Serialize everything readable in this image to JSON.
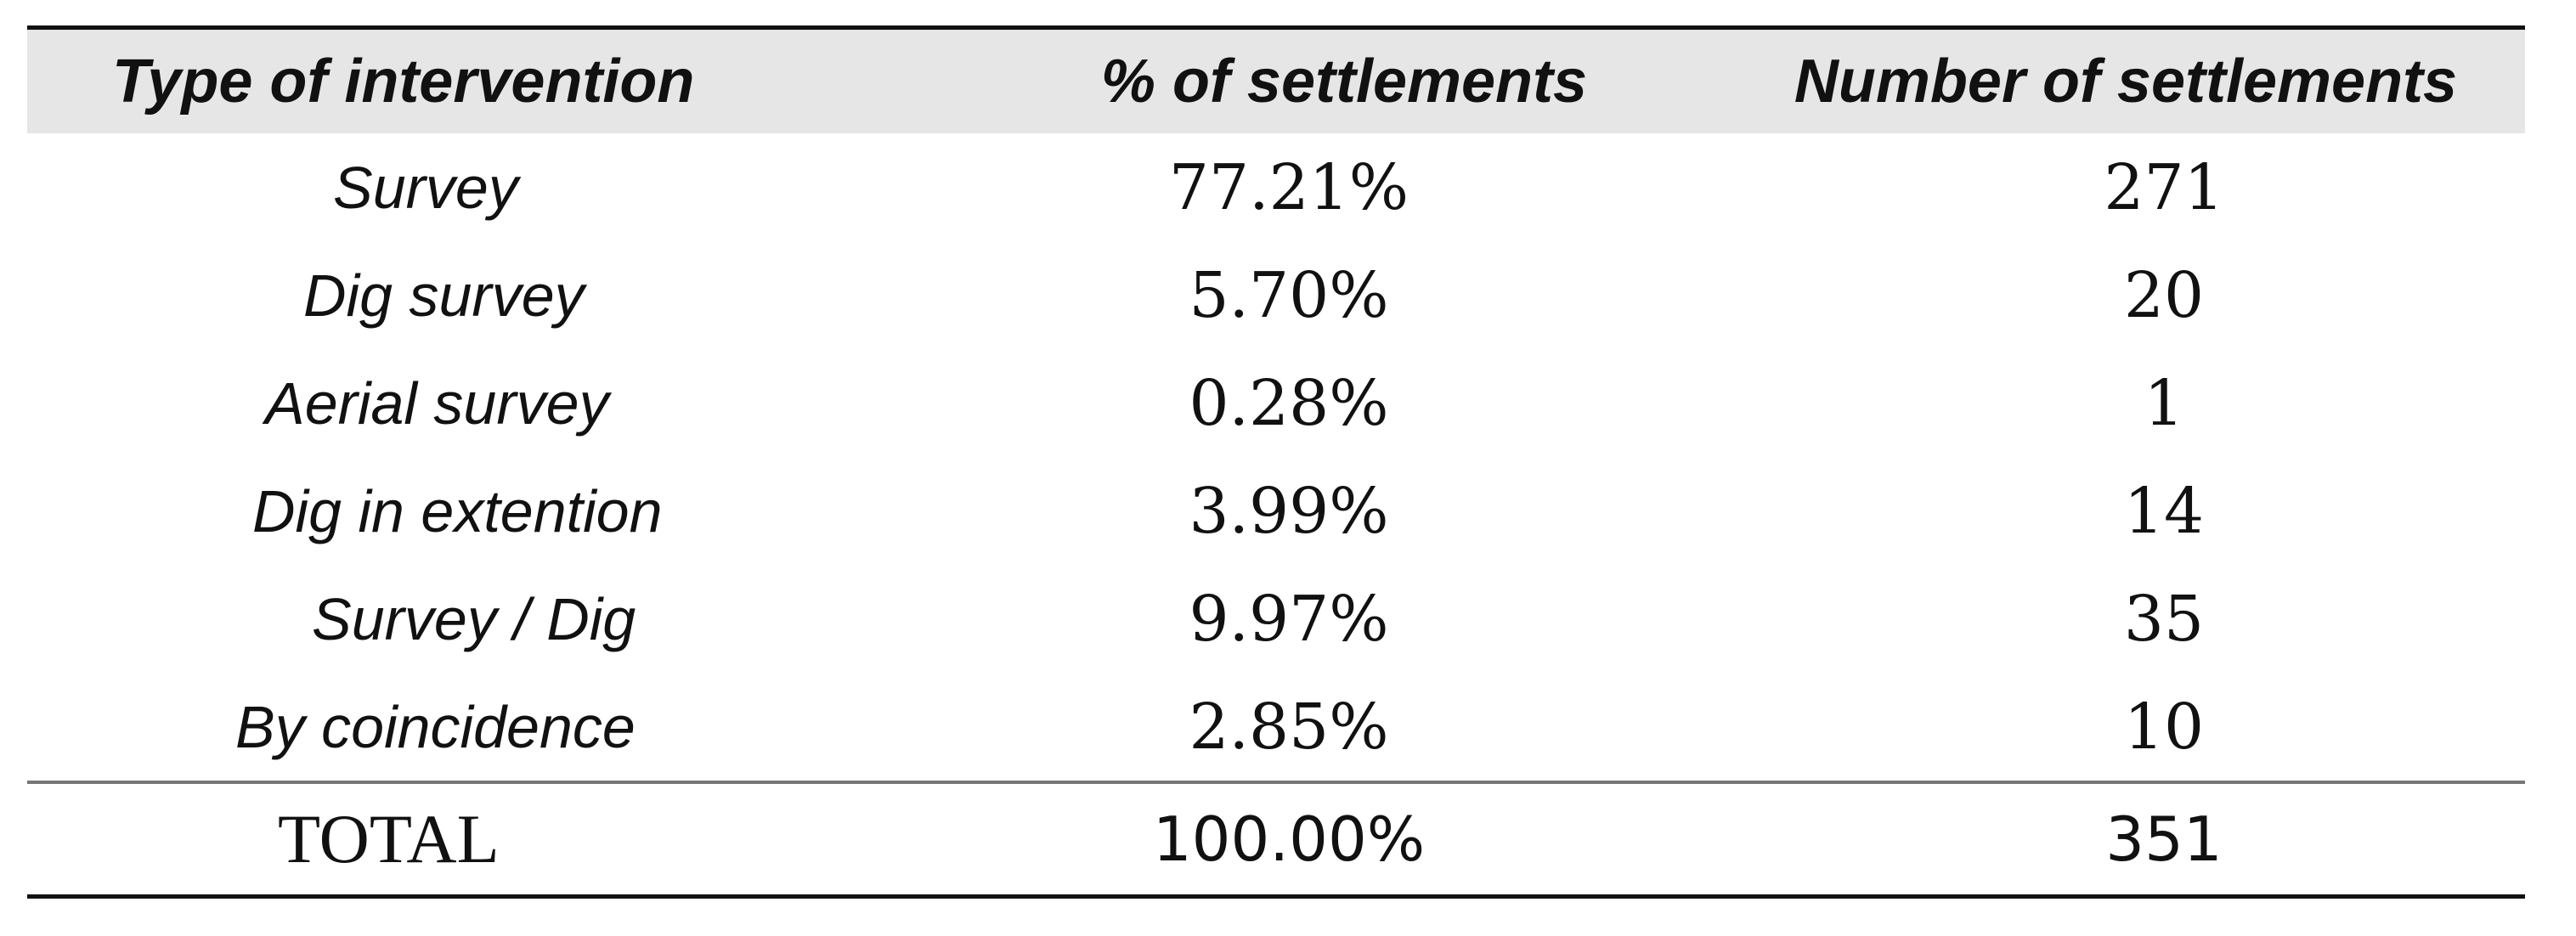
{
  "table": {
    "headers": [
      "Type of intervention",
      "% of settlements",
      "Number of settlements"
    ],
    "rows": [
      {
        "type": "Survey",
        "percent": "77.21%",
        "count": "271"
      },
      {
        "type": "Dig survey",
        "percent": "5.70%",
        "count": "20"
      },
      {
        "type": "Aerial survey",
        "percent": "0.28%",
        "count": "1"
      },
      {
        "type": "Dig in extention",
        "percent": "3.99%",
        "count": "14"
      },
      {
        "type": "Survey / Dig",
        "percent": "9.97%",
        "count": "35"
      },
      {
        "type": "By coincidence",
        "percent": "2.85%",
        "count": "10"
      }
    ],
    "total": {
      "label": "TOTAL",
      "percent": "100.00%",
      "count": "351"
    }
  }
}
